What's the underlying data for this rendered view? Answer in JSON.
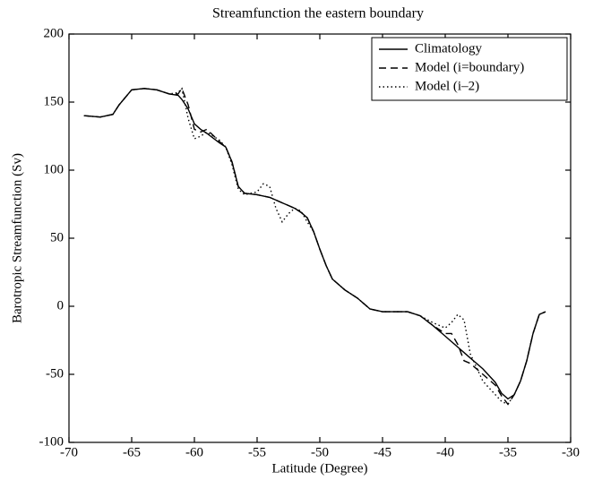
{
  "chart_data": {
    "type": "line",
    "title": "Streamfunction the eastern boundary",
    "xlabel": "Latitude (Degree)",
    "ylabel": "Barotropic Streamfunction (Sv)",
    "x": [
      -68.8,
      -67.5,
      -66.5,
      -66,
      -65,
      -64,
      -63,
      -62,
      -61.3,
      -61,
      -60.5,
      -60,
      -59.5,
      -59,
      -58,
      -57.5,
      -57,
      -56.5,
      -56,
      -55,
      -54.5,
      -54,
      -53.5,
      -53,
      -52.5,
      -52,
      -51.5,
      -51,
      -50.5,
      -50,
      -49.5,
      -49,
      -48,
      -47,
      -46,
      -45,
      -44,
      -43,
      -42,
      -41,
      -40,
      -39.5,
      -39,
      -38.5,
      -38,
      -37,
      -36,
      -35.5,
      -35,
      -34.5,
      -34,
      -33.5,
      -33,
      -32.5,
      -32
    ],
    "series": [
      {
        "name": "Climatology",
        "color": "#000000",
        "dash": "solid",
        "values": [
          140,
          139,
          141,
          148,
          159,
          160,
          159,
          156,
          155,
          152,
          145,
          134,
          130,
          127,
          120,
          117,
          106,
          88,
          83,
          82,
          81,
          80,
          78,
          76,
          74,
          72,
          69,
          65,
          55,
          42,
          30,
          20,
          12,
          6,
          -2,
          -4,
          -4,
          -4,
          -7,
          -14,
          -22,
          -26,
          -30,
          -34,
          -38,
          -46,
          -56,
          -64,
          -68,
          -65,
          -55,
          -40,
          -20,
          -6,
          -4
        ]
      },
      {
        "name": "Model (i=boundary)",
        "color": "#000000",
        "dash": "dashed",
        "values": [
          140,
          139,
          141,
          148,
          159,
          160,
          159,
          156,
          156,
          160,
          148,
          130,
          128,
          130,
          121,
          117,
          106,
          88,
          83,
          82,
          81,
          80,
          78,
          76,
          74,
          72,
          69,
          65,
          55,
          42,
          30,
          20,
          12,
          6,
          -2,
          -4,
          -4,
          -4,
          -7,
          -14,
          -20,
          -20,
          -28,
          -40,
          -42,
          -50,
          -58,
          -66,
          -72,
          -65,
          -55,
          -40,
          -20,
          -6,
          -4
        ]
      },
      {
        "name": "Model (i–2)",
        "color": "#000000",
        "dash": "dotted",
        "values": [
          140,
          139,
          141,
          148,
          159,
          160,
          159,
          156,
          157,
          160,
          138,
          123,
          125,
          128,
          122,
          117,
          104,
          86,
          82,
          84,
          90,
          88,
          72,
          62,
          68,
          72,
          70,
          62,
          55,
          42,
          30,
          20,
          12,
          6,
          -2,
          -4,
          -4,
          -4,
          -7,
          -12,
          -16,
          -12,
          -6,
          -10,
          -35,
          -55,
          -65,
          -70,
          -72,
          -65,
          -55,
          -40,
          -20,
          -6,
          -4
        ]
      }
    ],
    "xlim": [
      -70,
      -30
    ],
    "xticks": [
      -70,
      -65,
      -60,
      -55,
      -50,
      -45,
      -40,
      -35,
      -30
    ],
    "ylim": [
      -100,
      200
    ],
    "yticks": [
      -100,
      -50,
      0,
      50,
      100,
      150,
      200
    ],
    "legend": "upper right"
  }
}
